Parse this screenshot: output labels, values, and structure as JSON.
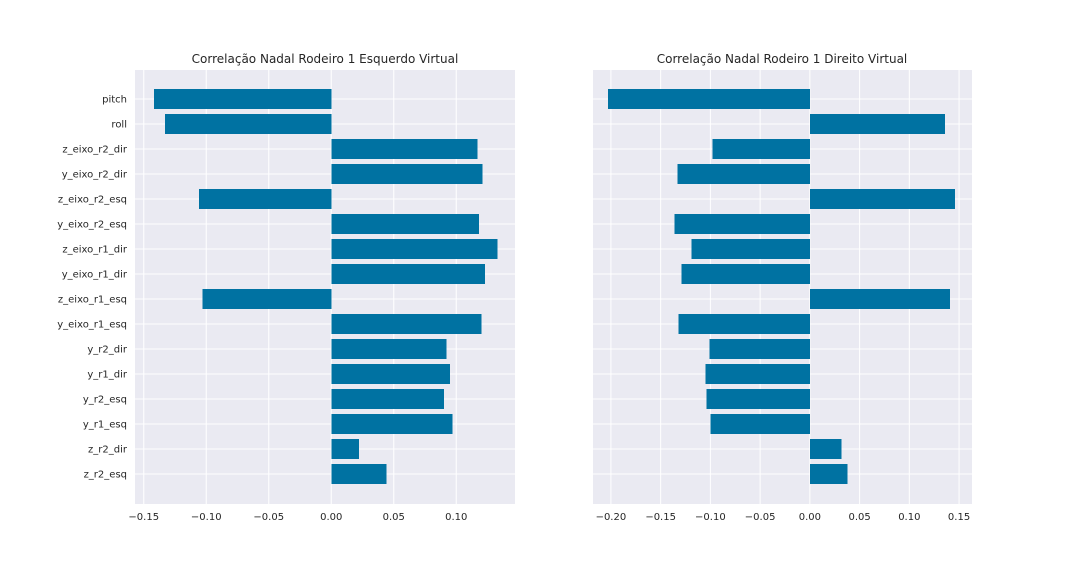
{
  "chart_data": [
    {
      "type": "bar",
      "orientation": "horizontal",
      "title": "Correlação Nadal Rodeiro 1 Esquerdo Virtual",
      "xlabel": "",
      "ylabel": "",
      "categories": [
        "pitch",
        "roll",
        "z_eixo_r2_dir",
        "y_eixo_r2_dir",
        "z_eixo_r2_esq",
        "y_eixo_r2_esq",
        "z_eixo_r1_dir",
        "y_eixo_r1_dir",
        "z_eixo_r1_esq",
        "y_eixo_r1_esq",
        "y_r2_dir",
        "y_r1_dir",
        "y_r2_esq",
        "y_r1_esq",
        "z_r2_dir",
        "z_r2_esq"
      ],
      "values": [
        -0.142,
        -0.133,
        0.117,
        0.121,
        -0.106,
        0.118,
        0.133,
        0.123,
        -0.103,
        0.12,
        0.092,
        0.095,
        0.09,
        0.097,
        0.022,
        0.044
      ],
      "xlim": [
        -0.157,
        0.147
      ],
      "xticks": [
        -0.15,
        -0.1,
        -0.05,
        0.0,
        0.05,
        0.1
      ],
      "xtick_labels": [
        "−0.15",
        "−0.10",
        "−0.05",
        "0.00",
        "0.05",
        "0.10"
      ],
      "show_category_labels": true,
      "bar_color": "#0072a2",
      "grid": true
    },
    {
      "type": "bar",
      "orientation": "horizontal",
      "title": "Correlação Nadal Rodeiro 1 Direito Virtual",
      "xlabel": "",
      "ylabel": "",
      "categories": [
        "pitch",
        "roll",
        "z_eixo_r2_dir",
        "y_eixo_r2_dir",
        "z_eixo_r2_esq",
        "y_eixo_r2_esq",
        "z_eixo_r1_dir",
        "y_eixo_r1_dir",
        "z_eixo_r1_esq",
        "y_eixo_r1_esq",
        "y_r2_dir",
        "y_r1_dir",
        "y_r2_esq",
        "y_r1_esq",
        "z_r2_dir",
        "z_r2_esq"
      ],
      "values": [
        -0.203,
        0.136,
        -0.098,
        -0.133,
        0.146,
        -0.136,
        -0.119,
        -0.129,
        0.141,
        -0.132,
        -0.101,
        -0.105,
        -0.104,
        -0.1,
        0.032,
        0.038
      ],
      "xlim": [
        -0.218,
        0.163
      ],
      "xticks": [
        -0.2,
        -0.15,
        -0.1,
        -0.05,
        0.0,
        0.05,
        0.1,
        0.15
      ],
      "xtick_labels": [
        "−0.20",
        "−0.15",
        "−0.10",
        "−0.05",
        "0.00",
        "0.05",
        "0.10",
        "0.15"
      ],
      "show_category_labels": false,
      "bar_color": "#0072a2",
      "grid": true
    }
  ]
}
